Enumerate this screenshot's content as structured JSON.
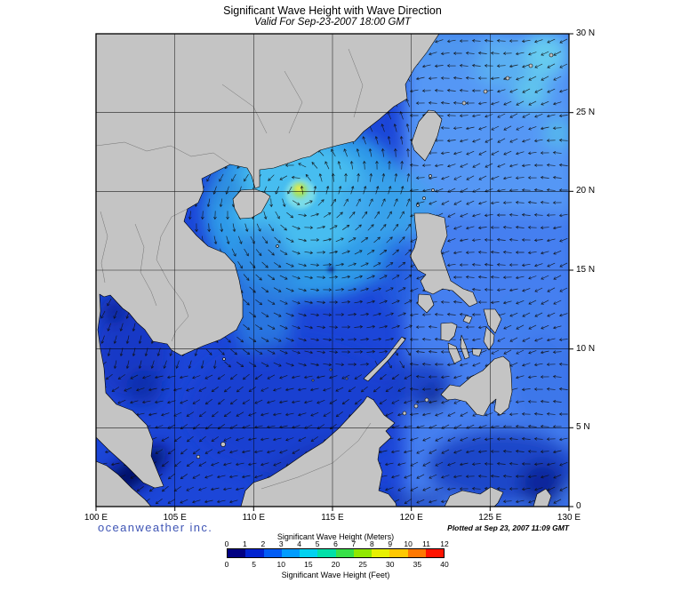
{
  "header": {
    "title": "Significant Wave Height with Wave Direction",
    "subtitle": "Valid For Sep-23-2007 18:00 GMT"
  },
  "axes": {
    "lon_ticks": [
      "100 E",
      "105 E",
      "110 E",
      "115 E",
      "120 E",
      "125 E",
      "130 E"
    ],
    "lat_ticks": [
      "0",
      "5 N",
      "10 N",
      "15 N",
      "20 N",
      "25 N",
      "30 N"
    ]
  },
  "legend": {
    "meters_title": "Significant Wave Height (Meters)",
    "feet_title": "Significant Wave Height (Feet)",
    "meters_ticks": [
      "0",
      "1",
      "2",
      "3",
      "4",
      "5",
      "6",
      "7",
      "8",
      "9",
      "10",
      "11",
      "12"
    ],
    "feet_ticks": [
      "0",
      "5",
      "10",
      "15",
      "20",
      "25",
      "30",
      "35",
      "40"
    ],
    "colors": [
      "#000082",
      "#0022d0",
      "#005cf5",
      "#009cff",
      "#00d2f0",
      "#00e0a8",
      "#38e048",
      "#90e800",
      "#e8f000",
      "#ffc800",
      "#ff7800",
      "#ff1400"
    ]
  },
  "footer": {
    "branding": "oceanweather inc.",
    "plotted": "Plotted at Sep 23, 2007 11:09 GMT"
  },
  "map_data": {
    "type": "geographic-wave-field",
    "region_lon_deg_e": [
      100,
      130
    ],
    "region_lat_deg_n": [
      0,
      30
    ],
    "grid_interval_deg": 5,
    "scale_range_meters": [
      0,
      12
    ],
    "scale_range_feet": [
      0,
      40
    ],
    "features": [
      {
        "name": "cyclone-wave-maximum-south-of-china-coast",
        "lon_e": 113,
        "lat_n": 20,
        "approx_hs_m": 8
      },
      {
        "name": "northern-south-china-sea-swell-field",
        "approx_hs_m": 3
      },
      {
        "name": "philippine-sea-westward-waves",
        "approx_hs_m": 2
      },
      {
        "name": "southern-south-china-sea",
        "approx_hs_m": 1.5
      },
      {
        "name": "gulf-of-thailand",
        "approx_hs_m": 1
      },
      {
        "name": "malacca-strait-minimum",
        "approx_hs_m": 0.5
      }
    ]
  }
}
